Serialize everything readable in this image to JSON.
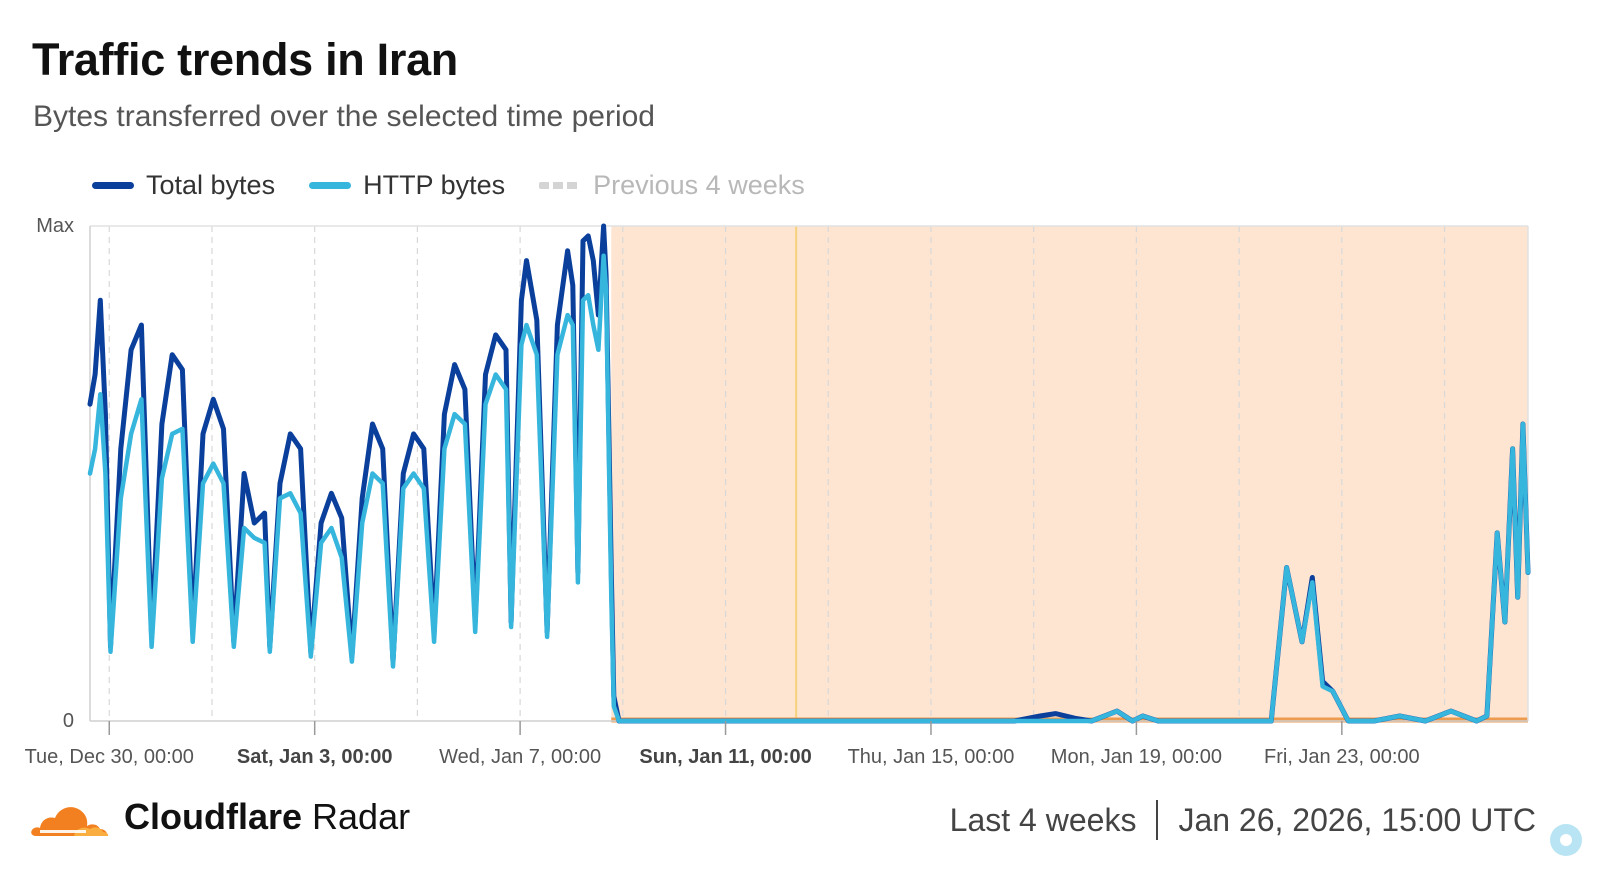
{
  "header": {
    "title": "Traffic trends in Iran",
    "subtitle": "Bytes transferred over the selected time period"
  },
  "legend": {
    "total": "Total bytes",
    "http": "HTTP bytes",
    "previous": "Previous 4 weeks"
  },
  "colors": {
    "total": "#0a3f9c",
    "http": "#36b5dd",
    "previous": "#d4d4d4",
    "shade": "#fde5d2",
    "shade_line": "#f5d27a",
    "baseline": "#ed9b4f",
    "brand_orange": "#f38020"
  },
  "footer": {
    "brand_bold": "Cloudflare",
    "brand_light": "Radar",
    "period": "Last 4 weeks",
    "timestamp": "Jan 26, 2026, 15:00 UTC"
  },
  "chart_data": {
    "type": "line",
    "title": "Traffic trends in Iran",
    "subtitle": "Bytes transferred over the selected time period",
    "xlabel": "",
    "ylabel": "",
    "units": "normalized bytes (0 = none, 1 = max)",
    "x_unit": "days since Dec 29, 2025 15:00 UTC",
    "xlim": [
      0,
      28
    ],
    "ylim": [
      0,
      1
    ],
    "y_tick_labels": [
      "0",
      "Max"
    ],
    "x_ticks": [
      {
        "x": 0.375,
        "label": "Tue, Dec 30, 00:00",
        "bold": false
      },
      {
        "x": 4.375,
        "label": "Sat, Jan 3, 00:00",
        "bold": true
      },
      {
        "x": 8.375,
        "label": "Wed, Jan 7, 00:00",
        "bold": false
      },
      {
        "x": 12.375,
        "label": "Sun, Jan 11, 00:00",
        "bold": true
      },
      {
        "x": 16.375,
        "label": "Thu, Jan 15, 00:00",
        "bold": false
      },
      {
        "x": 20.375,
        "label": "Mon, Jan 19, 00:00",
        "bold": false
      },
      {
        "x": 24.375,
        "label": "Fri, Jan 23, 00:00",
        "bold": false
      }
    ],
    "grid_x": [
      0.375,
      2.375,
      4.375,
      6.375,
      8.375,
      10.375,
      12.375,
      14.375,
      16.375,
      18.375,
      20.375,
      22.375,
      24.375,
      26.375
    ],
    "shaded_region": {
      "start": 10.15,
      "end": 28,
      "marker_x": 13.75
    },
    "series": [
      {
        "name": "Total bytes",
        "color": "#0a3f9c",
        "x": [
          0.0,
          0.1,
          0.2,
          0.3,
          0.4,
          0.6,
          0.8,
          1.0,
          1.2,
          1.4,
          1.6,
          1.8,
          2.0,
          2.2,
          2.4,
          2.6,
          2.8,
          3.0,
          3.2,
          3.4,
          3.5,
          3.7,
          3.9,
          4.1,
          4.3,
          4.5,
          4.7,
          4.9,
          5.1,
          5.3,
          5.5,
          5.7,
          5.9,
          6.1,
          6.3,
          6.5,
          6.7,
          6.9,
          7.1,
          7.3,
          7.5,
          7.7,
          7.9,
          8.1,
          8.2,
          8.4,
          8.5,
          8.7,
          8.9,
          9.1,
          9.3,
          9.4,
          9.5,
          9.6,
          9.7,
          9.8,
          9.9,
          10.0,
          10.05,
          10.1,
          10.15,
          10.2,
          10.3,
          10.5,
          11.0,
          12.0,
          13.0,
          14.0,
          15.0,
          16.0,
          17.0,
          18.0,
          18.5,
          18.8,
          19.0,
          19.2,
          19.5,
          20.0,
          20.3,
          20.5,
          20.8,
          21.0,
          21.5,
          22.0,
          22.5,
          23.0,
          23.3,
          23.6,
          23.8,
          24.0,
          24.2,
          24.5,
          25.0,
          25.5,
          26.0,
          26.5,
          27.0,
          27.2,
          27.4,
          27.55,
          27.7,
          27.8,
          27.9,
          28.0
        ],
        "y": [
          0.64,
          0.7,
          0.85,
          0.62,
          0.15,
          0.55,
          0.75,
          0.8,
          0.17,
          0.6,
          0.74,
          0.71,
          0.18,
          0.58,
          0.65,
          0.59,
          0.16,
          0.5,
          0.4,
          0.42,
          0.15,
          0.48,
          0.58,
          0.55,
          0.14,
          0.4,
          0.46,
          0.41,
          0.13,
          0.45,
          0.6,
          0.55,
          0.12,
          0.5,
          0.58,
          0.55,
          0.18,
          0.62,
          0.72,
          0.67,
          0.2,
          0.7,
          0.78,
          0.75,
          0.2,
          0.85,
          0.93,
          0.81,
          0.18,
          0.8,
          0.95,
          0.88,
          0.3,
          0.97,
          0.98,
          0.93,
          0.82,
          1.0,
          0.9,
          0.6,
          0.3,
          0.05,
          0.0,
          0.0,
          0.0,
          0.0,
          0.0,
          0.0,
          0.0,
          0.0,
          0.0,
          0.0,
          0.01,
          0.015,
          0.01,
          0.005,
          0.0,
          0.02,
          0.0,
          0.01,
          0.0,
          0.0,
          0.0,
          0.0,
          0.0,
          0.0,
          0.31,
          0.16,
          0.29,
          0.08,
          0.06,
          0.0,
          0.0,
          0.01,
          0.0,
          0.02,
          0.0,
          0.01,
          0.38,
          0.2,
          0.55,
          0.25,
          0.6,
          0.3
        ]
      },
      {
        "name": "HTTP bytes",
        "color": "#36b5dd",
        "x": [
          0.0,
          0.1,
          0.2,
          0.3,
          0.4,
          0.6,
          0.8,
          1.0,
          1.2,
          1.4,
          1.6,
          1.8,
          2.0,
          2.2,
          2.4,
          2.6,
          2.8,
          3.0,
          3.2,
          3.4,
          3.5,
          3.7,
          3.9,
          4.1,
          4.3,
          4.5,
          4.7,
          4.9,
          5.1,
          5.3,
          5.5,
          5.7,
          5.9,
          6.1,
          6.3,
          6.5,
          6.7,
          6.9,
          7.1,
          7.3,
          7.5,
          7.7,
          7.9,
          8.1,
          8.2,
          8.4,
          8.5,
          8.7,
          8.9,
          9.1,
          9.3,
          9.4,
          9.5,
          9.6,
          9.7,
          9.8,
          9.9,
          10.0,
          10.05,
          10.1,
          10.15,
          10.2,
          10.3,
          10.5,
          11.0,
          12.0,
          13.0,
          14.0,
          15.0,
          16.0,
          17.0,
          18.0,
          18.5,
          18.8,
          19.0,
          19.2,
          19.5,
          20.0,
          20.3,
          20.5,
          20.8,
          21.0,
          21.5,
          22.0,
          22.5,
          23.0,
          23.3,
          23.6,
          23.8,
          24.0,
          24.2,
          24.5,
          25.0,
          25.5,
          26.0,
          26.5,
          27.0,
          27.2,
          27.4,
          27.55,
          27.7,
          27.8,
          27.9,
          28.0
        ],
        "y": [
          0.5,
          0.55,
          0.66,
          0.5,
          0.14,
          0.45,
          0.58,
          0.65,
          0.15,
          0.49,
          0.58,
          0.59,
          0.16,
          0.48,
          0.52,
          0.48,
          0.15,
          0.39,
          0.37,
          0.36,
          0.14,
          0.45,
          0.46,
          0.42,
          0.13,
          0.36,
          0.39,
          0.33,
          0.12,
          0.4,
          0.5,
          0.48,
          0.11,
          0.47,
          0.5,
          0.47,
          0.16,
          0.55,
          0.62,
          0.6,
          0.18,
          0.64,
          0.7,
          0.67,
          0.19,
          0.76,
          0.8,
          0.74,
          0.17,
          0.74,
          0.82,
          0.8,
          0.28,
          0.85,
          0.86,
          0.8,
          0.75,
          0.94,
          0.87,
          0.55,
          0.25,
          0.03,
          0.0,
          0.0,
          0.0,
          0.0,
          0.0,
          0.0,
          0.0,
          0.0,
          0.0,
          0.0,
          0.0,
          0.0,
          0.0,
          0.0,
          0.0,
          0.02,
          0.0,
          0.01,
          0.0,
          0.0,
          0.0,
          0.0,
          0.0,
          0.0,
          0.31,
          0.16,
          0.28,
          0.07,
          0.06,
          0.0,
          0.0,
          0.01,
          0.0,
          0.02,
          0.0,
          0.01,
          0.38,
          0.2,
          0.55,
          0.25,
          0.6,
          0.3
        ]
      }
    ]
  }
}
